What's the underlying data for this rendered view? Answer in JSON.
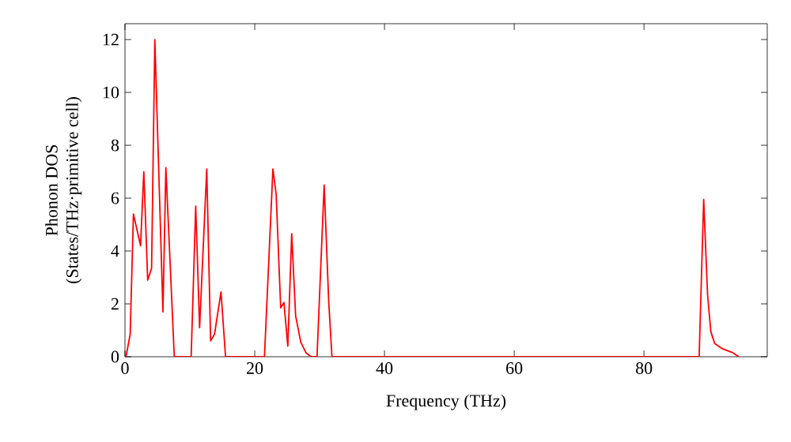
{
  "chart_data": {
    "type": "line",
    "xlabel": "Frequency (THz)",
    "ylabel": "Phonon DOS\n(States/THz·primitive cell)",
    "x": [
      0,
      0.2,
      0.8,
      1.3,
      2.4,
      2.9,
      3.5,
      4.1,
      4.6,
      5.85,
      6.3,
      7.6,
      10.2,
      10.9,
      11.5,
      12.6,
      13.2,
      13.8,
      14.8,
      15.5,
      21.5,
      22.8,
      23.3,
      24.0,
      24.5,
      25.1,
      25.7,
      26.3,
      27.1,
      27.9,
      28.7,
      29.6,
      30.7,
      31.4,
      31.9,
      88.5,
      89.2,
      89.8,
      90.3,
      90.9,
      92.1,
      93.7,
      94.6
    ],
    "series": [
      {
        "color": "#ff0000",
        "values": [
          0,
          0.06,
          0.85,
          5.4,
          4.2,
          7.0,
          2.9,
          3.35,
          12.0,
          1.7,
          7.15,
          0,
          0,
          5.7,
          1.1,
          7.1,
          0.6,
          0.85,
          2.45,
          0,
          0,
          7.1,
          6.15,
          1.85,
          2.05,
          0.4,
          4.65,
          1.55,
          0.55,
          0.15,
          0,
          0,
          6.5,
          2.1,
          0,
          0,
          5.95,
          2.35,
          0.95,
          0.5,
          0.3,
          0.15,
          0
        ]
      }
    ],
    "xlim": [
      0,
      99
    ],
    "ylim": [
      0,
      12.6
    ],
    "xticks": [
      0,
      20,
      40,
      60,
      80
    ],
    "yticks": [
      0,
      2,
      4,
      6,
      8,
      10,
      12
    ],
    "grid": false,
    "marker": "none",
    "line_style": "solid"
  }
}
